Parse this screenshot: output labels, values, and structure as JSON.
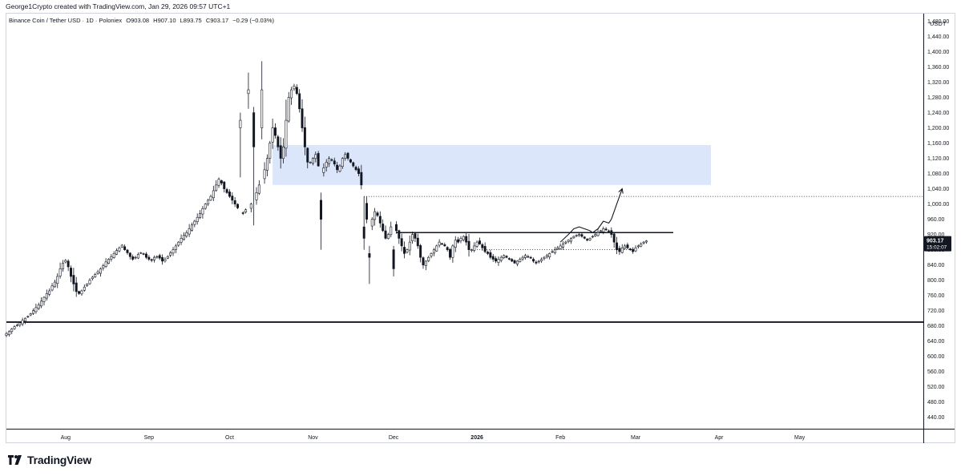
{
  "header": {
    "credit": "George1Crypto created with TradingView.com, Jan 29, 2026 09:57 UTC+1"
  },
  "chart_data": {
    "type": "candlestick",
    "symbol": "Binance Coin / Tether USD · 1D · Poloniex",
    "ohlc_label": {
      "open": "O903.08",
      "high": "H907.10",
      "low": "L893.75",
      "close": "C903.17",
      "change": "−0.29 (−0.03%)"
    },
    "currency": "USDT",
    "last_price": "903.17",
    "countdown": "15:02:07",
    "ylim": [
      410,
      1500
    ],
    "yticks": [
      "1,480.00",
      "1,440.00",
      "1,400.00",
      "1,360.00",
      "1,320.00",
      "1,280.00",
      "1,240.00",
      "1,200.00",
      "1,160.00",
      "1,120.00",
      "1,080.00",
      "1,040.00",
      "1,000.00",
      "960.00",
      "920.00",
      "880.00",
      "840.00",
      "800.00",
      "760.00",
      "720.00",
      "680.00",
      "640.00",
      "600.00",
      "560.00",
      "520.00",
      "480.00",
      "440.00"
    ],
    "ytick_values": [
      1480,
      1440,
      1400,
      1360,
      1320,
      1280,
      1240,
      1200,
      1160,
      1120,
      1080,
      1040,
      1000,
      960,
      920,
      880,
      840,
      800,
      760,
      720,
      680,
      640,
      600,
      560,
      520,
      480,
      440
    ],
    "xtick_labels": [
      {
        "label": "Aug",
        "date": "2025-08-01"
      },
      {
        "label": "Sep",
        "date": "2025-09-01"
      },
      {
        "label": "Oct",
        "date": "2025-10-01"
      },
      {
        "label": "Nov",
        "date": "2025-11-01"
      },
      {
        "label": "Dec",
        "date": "2025-12-01"
      },
      {
        "label": "2026",
        "date": "2026-01-01",
        "bold": true
      },
      {
        "label": "Feb",
        "date": "2026-02-01"
      },
      {
        "label": "Mar",
        "date": "2026-03-01"
      },
      {
        "label": "Apr",
        "date": "2026-04-01"
      },
      {
        "label": "May",
        "date": "2026-05-01"
      }
    ],
    "x_range": [
      "2025-07-10",
      "2026-06-16"
    ],
    "close_series": {
      "start": "2025-07-10",
      "values": [
        660,
        665,
        672,
        678,
        682,
        688,
        695,
        700,
        705,
        712,
        720,
        728,
        735,
        745,
        755,
        765,
        772,
        785,
        795,
        810,
        830,
        845,
        852,
        835,
        810,
        790,
        770,
        765,
        772,
        782,
        790,
        800,
        808,
        815,
        822,
        830,
        838,
        848,
        855,
        862,
        870,
        878,
        885,
        892,
        880,
        872,
        862,
        855,
        860,
        868,
        872,
        868,
        860,
        855,
        852,
        860,
        862,
        858,
        850,
        855,
        862,
        872,
        880,
        890,
        900,
        910,
        918,
        925,
        935,
        945,
        955,
        965,
        975,
        988,
        1000,
        1010,
        1020,
        1035,
        1050,
        1065,
        1055,
        1040,
        1030,
        1020,
        1010,
        1000,
        990,
        980,
        975,
        985,
        990,
        1000,
        1010,
        1030,
        1050,
        1065,
        1090,
        1120,
        1160,
        1200,
        1180,
        1150,
        1120,
        1150,
        1220,
        1280,
        1300,
        1310,
        1290,
        1250,
        1200,
        1150,
        1110,
        1110,
        1120,
        1130,
        1100,
        1080,
        1095,
        1110,
        1120,
        1115,
        1105,
        1090,
        1100,
        1120,
        1130,
        1120,
        1110,
        1100,
        1090,
        1080,
        1050,
        1000,
        960,
        940,
        960,
        980,
        970,
        950,
        930,
        910,
        920,
        940,
        950,
        930,
        910,
        890,
        870,
        880,
        900,
        920,
        910,
        890,
        860,
        840,
        850,
        860,
        870,
        880,
        890,
        900,
        895,
        890,
        880,
        860,
        890,
        905,
        900,
        910,
        915,
        900,
        880,
        880,
        890,
        900,
        895,
        885,
        875,
        870,
        860,
        855,
        850,
        855,
        860,
        865,
        860,
        855,
        850,
        845,
        850,
        855,
        860,
        865,
        862,
        858,
        850,
        845,
        850,
        855,
        860,
        865,
        870,
        875,
        880,
        885,
        890,
        895,
        900,
        905,
        910,
        915,
        918,
        920,
        915,
        910,
        905,
        910,
        915,
        920,
        925,
        930,
        935,
        932,
        928,
        920,
        900,
        880,
        875,
        885,
        890,
        885,
        880,
        875,
        885,
        890,
        895,
        900,
        903
      ]
    },
    "fixed_candles": [
      {
        "date": "2025-10-05",
        "open": 1200,
        "high": 1240,
        "low": 1070,
        "close": 1220
      },
      {
        "date": "2025-10-08",
        "open": 1290,
        "high": 1345,
        "low": 1250,
        "close": 1300
      },
      {
        "date": "2025-10-10",
        "open": 1240,
        "high": 1255,
        "low": 944,
        "close": 1150
      },
      {
        "date": "2025-10-13",
        "open": 1200,
        "high": 1375,
        "low": 1170,
        "close": 1300
      },
      {
        "date": "2025-11-04",
        "open": 1010,
        "high": 1030,
        "low": 880,
        "close": 960
      },
      {
        "date": "2025-11-20",
        "open": 940,
        "high": 1020,
        "low": 880,
        "close": 910
      },
      {
        "date": "2025-11-22",
        "open": 870,
        "high": 890,
        "low": 790,
        "close": 860
      },
      {
        "date": "2025-12-01",
        "open": 880,
        "high": 890,
        "low": 810,
        "close": 830
      }
    ],
    "annotations": {
      "supply_zone": {
        "from": "2025-10-17",
        "to": "2026-03-29",
        "top": 1155,
        "bottom": 1050,
        "color": "#dce6fb"
      },
      "dotted_high": {
        "from": "2025-11-20",
        "to": "2026-06-16",
        "value": 1020
      },
      "resistance_line": {
        "from": "2025-12-02",
        "to": "2026-03-15",
        "value": 925
      },
      "dotted_low": {
        "from": "2026-01-01",
        "to": "2026-02-28",
        "value": 880
      },
      "support_line": {
        "from": "2025-07-10",
        "to": "2026-06-16",
        "value": 690
      },
      "projection_path": [
        {
          "date": "2026-02-01",
          "value": 900
        },
        {
          "date": "2026-02-04",
          "value": 920
        },
        {
          "date": "2026-02-06",
          "value": 935
        },
        {
          "date": "2026-02-08",
          "value": 940
        },
        {
          "date": "2026-02-10",
          "value": 935
        },
        {
          "date": "2026-02-12",
          "value": 930
        },
        {
          "date": "2026-02-13",
          "value": 925
        },
        {
          "date": "2026-02-15",
          "value": 935
        },
        {
          "date": "2026-02-17",
          "value": 955
        },
        {
          "date": "2026-02-19",
          "value": 950
        },
        {
          "date": "2026-02-20",
          "value": 960
        },
        {
          "date": "2026-02-22",
          "value": 1000
        },
        {
          "date": "2026-02-24",
          "value": 1040
        }
      ]
    },
    "colors": {
      "up": "#26a69a",
      "down": "#131722",
      "candle_body_up": "#ffffff",
      "candle_body_down": "#131722",
      "price_label_bg": "#131722",
      "line": "#131722"
    }
  },
  "footer": {
    "brand": "TradingView"
  }
}
